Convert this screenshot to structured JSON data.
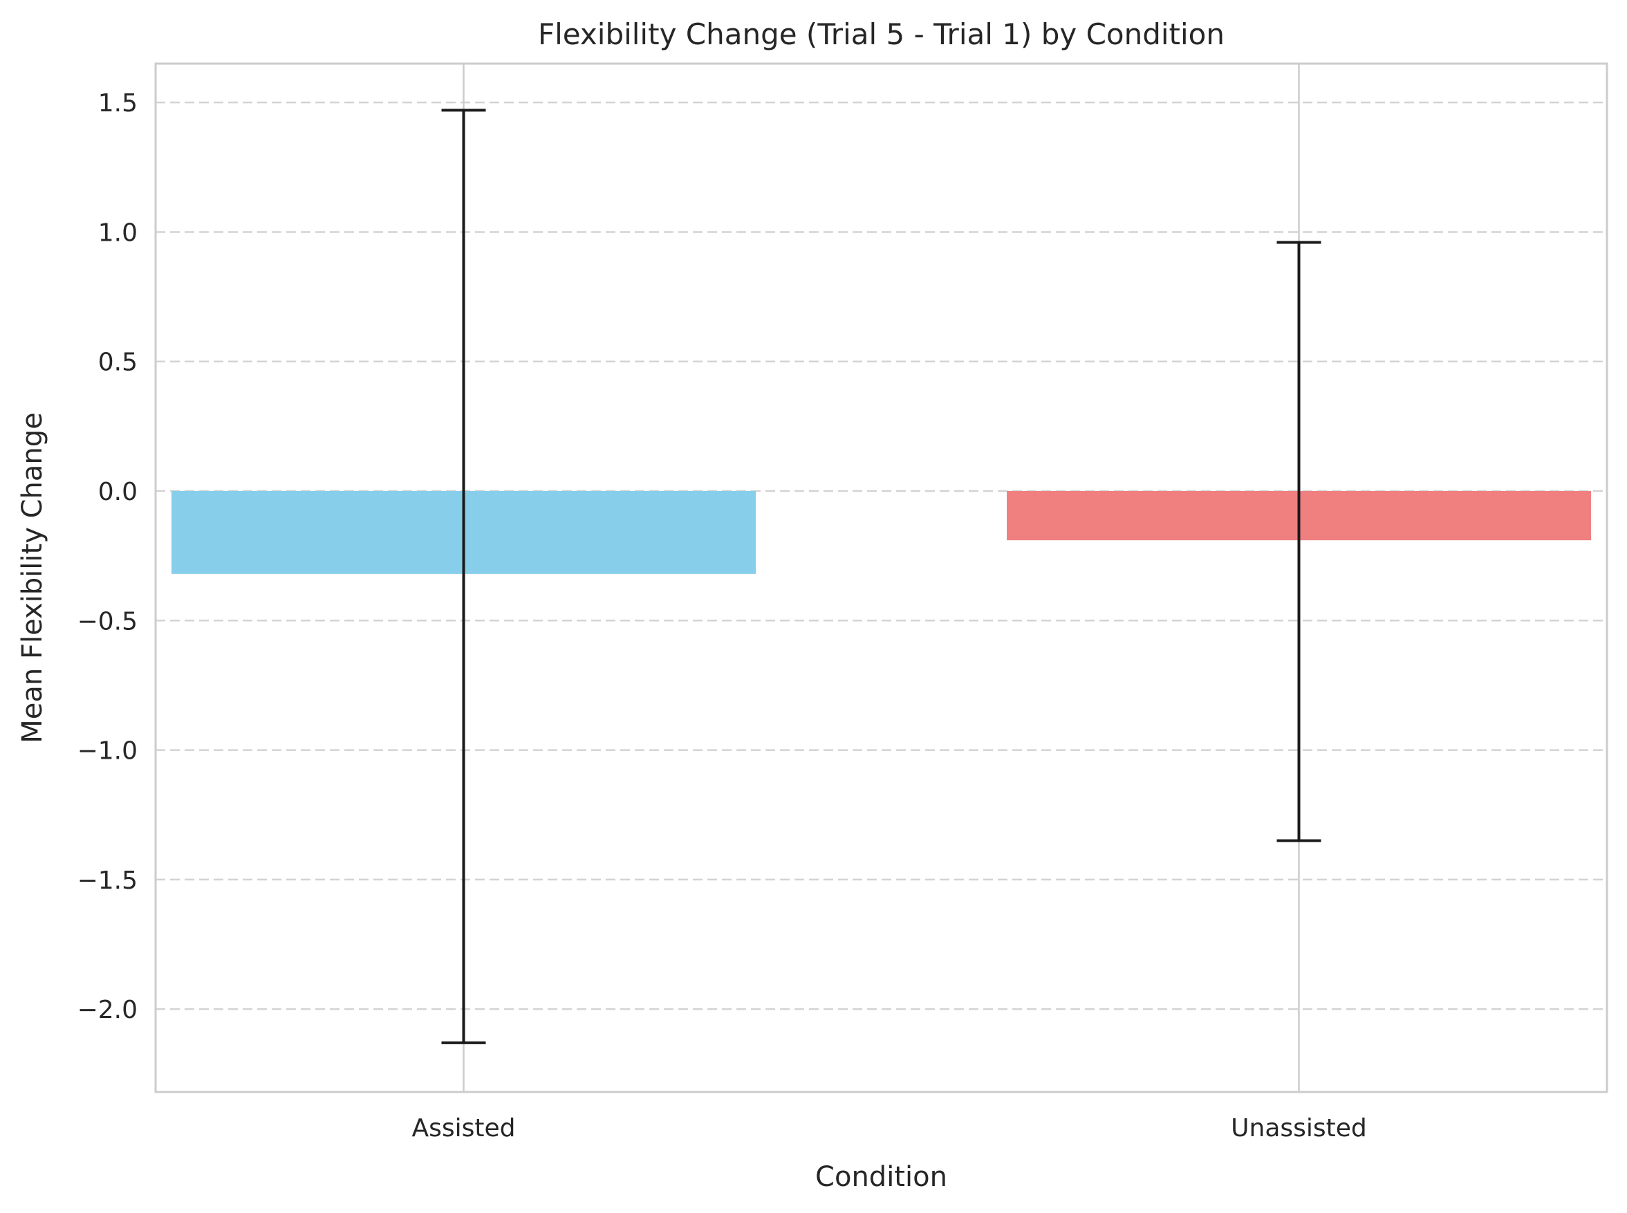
{
  "chart_data": {
    "type": "bar",
    "title": "Flexibility Change (Trial 5 - Trial 1) by Condition",
    "xlabel": "Condition",
    "ylabel": "Mean Flexibility Change",
    "categories": [
      "Assisted",
      "Unassisted"
    ],
    "values": [
      -0.32,
      -0.19
    ],
    "error_low": [
      -2.13,
      -1.35
    ],
    "error_high": [
      1.47,
      0.96
    ],
    "colors": [
      "#87ceeb",
      "#f08080"
    ],
    "ylim": [
      -2.32,
      1.65
    ],
    "yticks": [
      1.5,
      1.0,
      0.5,
      0.0,
      -0.5,
      -1.0,
      -1.5,
      -2.0
    ],
    "ytick_labels": [
      "1.5",
      "1.0",
      "0.5",
      "0.0",
      "−0.5",
      "−1.0",
      "−1.5",
      "−2.0"
    ],
    "grid": true,
    "legend": false
  }
}
